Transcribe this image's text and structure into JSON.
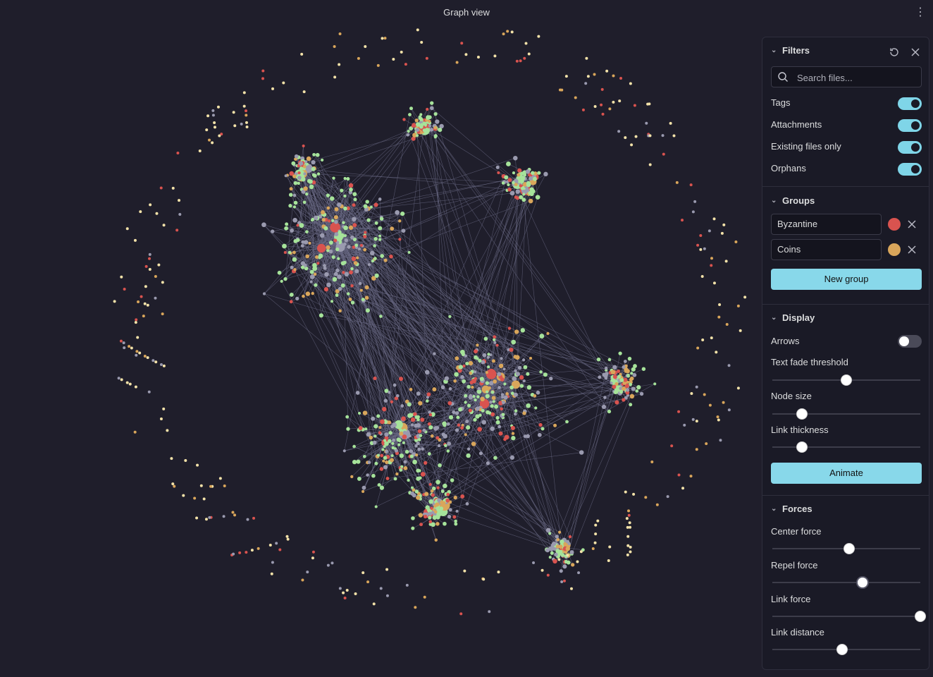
{
  "header": {
    "title": "Graph view",
    "more_icon": "more-vertical-icon"
  },
  "colors": {
    "background": "#1f1e2b",
    "group_byzantine": "#d9534f",
    "group_coins": "#d9a65b",
    "node_default": "#9a9aaf",
    "node_green": "#a6e39a",
    "node_cream": "#f3e2a9",
    "accent": "#7fd5e8"
  },
  "filters": {
    "title": "Filters",
    "search_placeholder": "Search files...",
    "toggles": [
      {
        "label": "Tags",
        "on": true
      },
      {
        "label": "Attachments",
        "on": true
      },
      {
        "label": "Existing files only",
        "on": true
      },
      {
        "label": "Orphans",
        "on": true
      }
    ]
  },
  "groups": {
    "title": "Groups",
    "items": [
      {
        "query": "Byzantine",
        "color": "#d9534f"
      },
      {
        "query": "Coins",
        "color": "#d9a65b"
      }
    ],
    "new_group_label": "New group"
  },
  "display": {
    "title": "Display",
    "arrows_label": "Arrows",
    "arrows_on": false,
    "sliders": [
      {
        "label": "Text fade threshold",
        "value": 0.5
      },
      {
        "label": "Node size",
        "value": 0.2
      },
      {
        "label": "Link thickness",
        "value": 0.2
      }
    ],
    "animate_label": "Animate"
  },
  "forces": {
    "title": "Forces",
    "sliders": [
      {
        "label": "Center force",
        "value": 0.52
      },
      {
        "label": "Repel force",
        "value": 0.61
      },
      {
        "label": "Link force",
        "value": 1.0
      },
      {
        "label": "Link distance",
        "value": 0.47
      }
    ]
  }
}
